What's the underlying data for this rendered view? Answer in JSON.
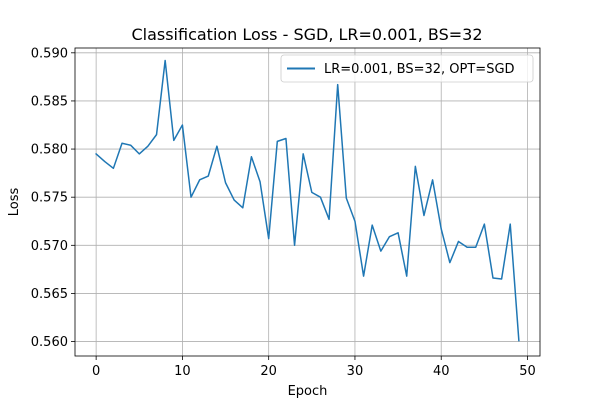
{
  "chart_data": {
    "type": "line",
    "title": "Classification Loss - SGD, LR=0.001, BS=32",
    "xlabel": "Epoch",
    "ylabel": "Loss",
    "xlim": [
      -2.45,
      51.45
    ],
    "ylim": [
      0.5585,
      0.5905
    ],
    "xticks": [
      0,
      10,
      20,
      30,
      40,
      50
    ],
    "xtick_labels": [
      "0",
      "10",
      "20",
      "30",
      "40",
      "50"
    ],
    "yticks": [
      0.56,
      0.565,
      0.57,
      0.575,
      0.58,
      0.585,
      0.59
    ],
    "ytick_labels": [
      "0.560",
      "0.565",
      "0.570",
      "0.575",
      "0.580",
      "0.585",
      "0.590"
    ],
    "grid": true,
    "legend_position": "top-right",
    "series_color": "#1f77b4",
    "series": [
      {
        "name": "LR=0.001, BS=32, OPT=SGD",
        "x": [
          0,
          1,
          2,
          3,
          4,
          5,
          6,
          7,
          8,
          9,
          10,
          11,
          12,
          13,
          14,
          15,
          16,
          17,
          18,
          19,
          20,
          21,
          22,
          23,
          24,
          25,
          26,
          27,
          28,
          29,
          30,
          31,
          32,
          33,
          34,
          35,
          36,
          37,
          38,
          39,
          40,
          41,
          42,
          43,
          44,
          45,
          46,
          47,
          48,
          49
        ],
        "values": [
          0.5795,
          0.5787,
          0.578,
          0.5806,
          0.5804,
          0.5795,
          0.5803,
          0.5815,
          0.5892,
          0.5809,
          0.5825,
          0.575,
          0.5768,
          0.5772,
          0.5803,
          0.5765,
          0.5747,
          0.5739,
          0.5792,
          0.5766,
          0.5707,
          0.5808,
          0.5811,
          0.57,
          0.5795,
          0.5755,
          0.575,
          0.5727,
          0.5867,
          0.5749,
          0.5725,
          0.5668,
          0.5721,
          0.5694,
          0.5709,
          0.5713,
          0.5668,
          0.5782,
          0.5731,
          0.5768,
          0.5717,
          0.5682,
          0.5704,
          0.5698,
          0.5698,
          0.5722,
          0.5666,
          0.5665,
          0.5722,
          0.5601
        ]
      }
    ]
  }
}
